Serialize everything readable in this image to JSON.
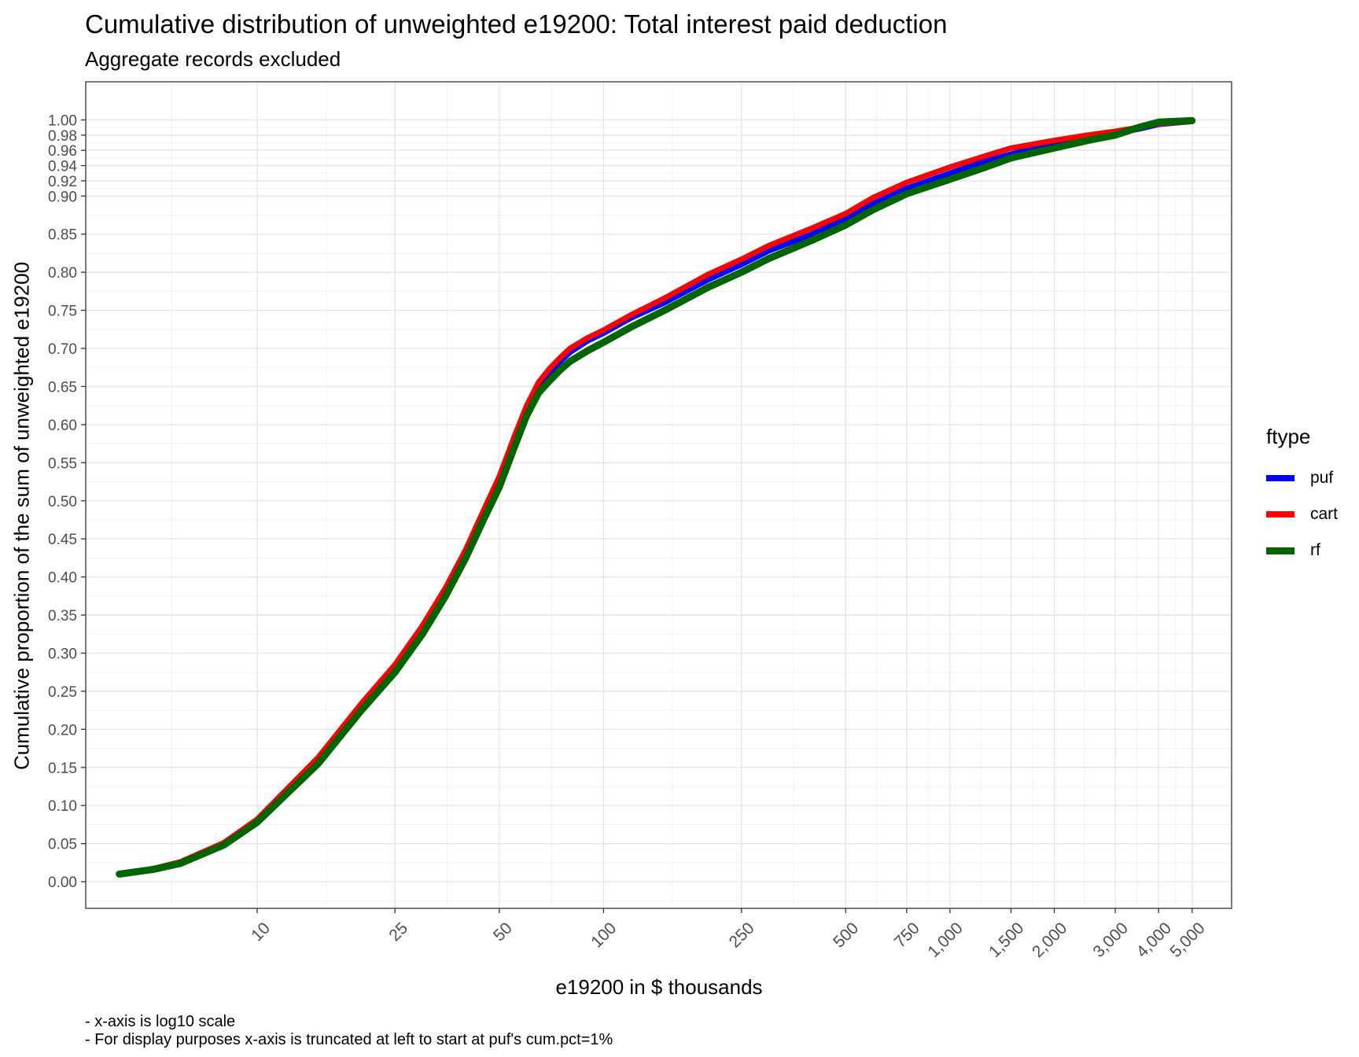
{
  "chart_data": {
    "type": "line",
    "title": "Cumulative distribution of unweighted e19200: Total interest paid deduction",
    "subtitle": "Aggregate records excluded",
    "xlabel": "e19200 in $ thousands",
    "ylabel": "Cumulative proportion of the sum of unweighted e19200",
    "x_scale": "log10",
    "xlim": [
      3.2,
      6500
    ],
    "ylim": [
      -0.035,
      1.05
    ],
    "x_ticks": [
      10,
      25,
      50,
      100,
      250,
      500,
      750,
      1000,
      1500,
      2000,
      3000,
      4000,
      5000
    ],
    "x_tick_labels": [
      "10",
      "25",
      "50",
      "100",
      "250",
      "500",
      "750",
      "1,000",
      "1,500",
      "2,000",
      "3,000",
      "4,000",
      "5,000"
    ],
    "y_ticks": [
      0,
      0.05,
      0.1,
      0.15,
      0.2,
      0.25,
      0.3,
      0.35,
      0.4,
      0.45,
      0.5,
      0.55,
      0.6,
      0.65,
      0.7,
      0.75,
      0.8,
      0.85,
      0.9,
      0.92,
      0.94,
      0.96,
      0.98,
      1.0
    ],
    "y_tick_labels": [
      "0.00",
      "0.05",
      "0.10",
      "0.15",
      "0.20",
      "0.25",
      "0.30",
      "0.35",
      "0.40",
      "0.45",
      "0.50",
      "0.55",
      "0.60",
      "0.65",
      "0.70",
      "0.75",
      "0.80",
      "0.85",
      "0.90",
      "0.92",
      "0.94",
      "0.96",
      "0.98",
      "1.00"
    ],
    "grid": true,
    "legend": {
      "title": "ftype",
      "position": "right"
    },
    "series": [
      {
        "name": "puf",
        "color": "#0000FF",
        "x": [
          4,
          5,
          6,
          8,
          10,
          15,
          20,
          25,
          30,
          35,
          40,
          45,
          50,
          55,
          60,
          65,
          70,
          75,
          80,
          90,
          100,
          120,
          150,
          200,
          250,
          300,
          400,
          500,
          600,
          750,
          1000,
          1250,
          1500,
          2000,
          2500,
          3000,
          3500,
          4000,
          5000
        ],
        "y": [
          0.01,
          0.017,
          0.025,
          0.05,
          0.08,
          0.16,
          0.23,
          0.28,
          0.33,
          0.38,
          0.43,
          0.48,
          0.525,
          0.575,
          0.62,
          0.65,
          0.668,
          0.683,
          0.695,
          0.71,
          0.72,
          0.74,
          0.76,
          0.79,
          0.81,
          0.828,
          0.85,
          0.87,
          0.89,
          0.91,
          0.93,
          0.945,
          0.955,
          0.97,
          0.977,
          0.982,
          0.988,
          0.994,
          0.998
        ]
      },
      {
        "name": "cart",
        "color": "#FF0000",
        "x": [
          4,
          5,
          6,
          8,
          10,
          15,
          20,
          25,
          30,
          35,
          40,
          45,
          50,
          55,
          60,
          65,
          70,
          75,
          80,
          90,
          100,
          120,
          150,
          200,
          250,
          300,
          400,
          500,
          600,
          750,
          1000,
          1250,
          1500,
          2000,
          2500,
          3000,
          3500,
          4000,
          5000
        ],
        "y": [
          0.01,
          0.017,
          0.026,
          0.051,
          0.082,
          0.163,
          0.234,
          0.285,
          0.336,
          0.386,
          0.436,
          0.487,
          0.532,
          0.582,
          0.625,
          0.656,
          0.674,
          0.688,
          0.7,
          0.714,
          0.724,
          0.744,
          0.766,
          0.797,
          0.817,
          0.835,
          0.858,
          0.877,
          0.898,
          0.918,
          0.938,
          0.952,
          0.963,
          0.973,
          0.98,
          0.985,
          0.99,
          0.995,
          0.998
        ]
      },
      {
        "name": "rf",
        "color": "#006400",
        "x": [
          4,
          5,
          6,
          8,
          10,
          15,
          20,
          25,
          30,
          35,
          40,
          45,
          50,
          55,
          60,
          65,
          70,
          75,
          80,
          90,
          100,
          120,
          150,
          200,
          250,
          300,
          400,
          500,
          600,
          750,
          1000,
          1250,
          1500,
          2000,
          2500,
          3000,
          3500,
          4000,
          5000
        ],
        "y": [
          0.01,
          0.016,
          0.024,
          0.048,
          0.078,
          0.155,
          0.225,
          0.275,
          0.325,
          0.375,
          0.425,
          0.475,
          0.518,
          0.568,
          0.612,
          0.642,
          0.658,
          0.672,
          0.683,
          0.697,
          0.708,
          0.728,
          0.75,
          0.78,
          0.8,
          0.818,
          0.842,
          0.862,
          0.882,
          0.903,
          0.922,
          0.937,
          0.95,
          0.963,
          0.973,
          0.98,
          0.99,
          0.997,
          0.999
        ]
      }
    ],
    "notes": [
      "- x-axis is log10 scale",
      "- For display purposes x-axis is truncated at left to start at puf's cum.pct=1%"
    ]
  }
}
